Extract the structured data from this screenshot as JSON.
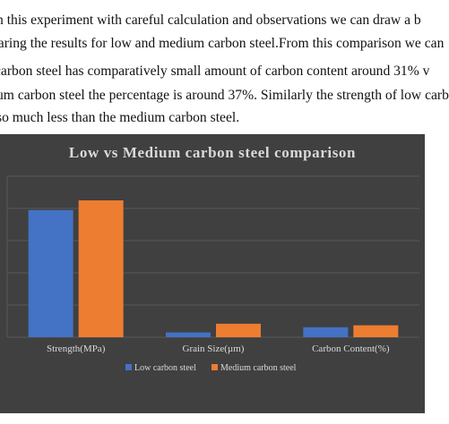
{
  "paragraph": {
    "lines": [
      "n this experiment with careful calculation and observations we can draw a b",
      "paring the results for low and medium carbon steel.From this comparison we can",
      "carbon steel has comparatively small amount of carbon content around 31% v",
      "um carbon steel the percentage is around 37%. Similarly the strength of low carb",
      "so much less than the medium carbon steel."
    ]
  },
  "colors": {
    "background": "#404040",
    "gridline": "#595959",
    "low": "#4472C4",
    "medium": "#ED7D31",
    "text": "#D9D9D9"
  },
  "chart_data": {
    "type": "bar",
    "title": "Low vs Medium carbon steel comparison",
    "categories": [
      "Strength(MPa)",
      "Grain Size(µm)",
      "Carbon Content(%)"
    ],
    "series": [
      {
        "name": "Low carbon steel",
        "values": [
          395,
          15,
          31
        ]
      },
      {
        "name": "Medium carbon steel",
        "values": [
          425,
          42,
          37
        ]
      }
    ],
    "xlabel": "",
    "ylabel": "",
    "ylim": [
      0,
      500
    ],
    "gridlines": true,
    "legend": "bottom"
  }
}
